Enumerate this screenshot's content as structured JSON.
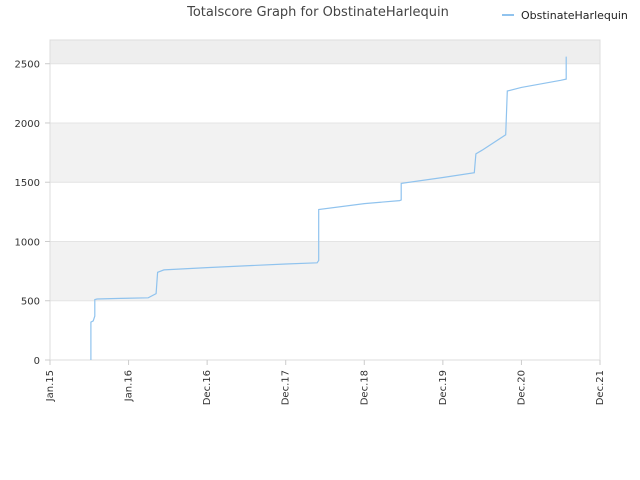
{
  "chart_data": {
    "type": "line",
    "title": "Totalscore Graph for ObstinateHarlequin",
    "xlabel": "",
    "ylabel": "",
    "x_ticks": [
      "Jan.15",
      "Jan.16",
      "Dec.16",
      "Dec.17",
      "Dec.18",
      "Dec.19",
      "Dec.20",
      "Dec.21"
    ],
    "xlim": [
      0,
      7
    ],
    "ylim": [
      0,
      2700
    ],
    "y_ticks": [
      0,
      500,
      1000,
      1500,
      2000,
      2500
    ],
    "grid": true,
    "legend_position": "top-right",
    "series": [
      {
        "name": "ObstinateHarlequin",
        "color": "#90c3ee",
        "points": [
          [
            0.52,
            0
          ],
          [
            0.52,
            320
          ],
          [
            0.55,
            330
          ],
          [
            0.57,
            370
          ],
          [
            0.57,
            510
          ],
          [
            0.6,
            515
          ],
          [
            0.9,
            520
          ],
          [
            1.25,
            525
          ],
          [
            1.35,
            560
          ],
          [
            1.37,
            740
          ],
          [
            1.45,
            760
          ],
          [
            2.0,
            780
          ],
          [
            3.0,
            810
          ],
          [
            3.4,
            820
          ],
          [
            3.42,
            840
          ],
          [
            3.42,
            1270
          ],
          [
            4.0,
            1320
          ],
          [
            4.45,
            1345
          ],
          [
            4.47,
            1350
          ],
          [
            4.47,
            1490
          ],
          [
            5.0,
            1540
          ],
          [
            5.4,
            1580
          ],
          [
            5.42,
            1740
          ],
          [
            5.5,
            1770
          ],
          [
            5.8,
            1900
          ],
          [
            5.82,
            2270
          ],
          [
            6.0,
            2300
          ],
          [
            6.5,
            2360
          ],
          [
            6.57,
            2370
          ],
          [
            6.57,
            2560
          ]
        ]
      }
    ]
  }
}
